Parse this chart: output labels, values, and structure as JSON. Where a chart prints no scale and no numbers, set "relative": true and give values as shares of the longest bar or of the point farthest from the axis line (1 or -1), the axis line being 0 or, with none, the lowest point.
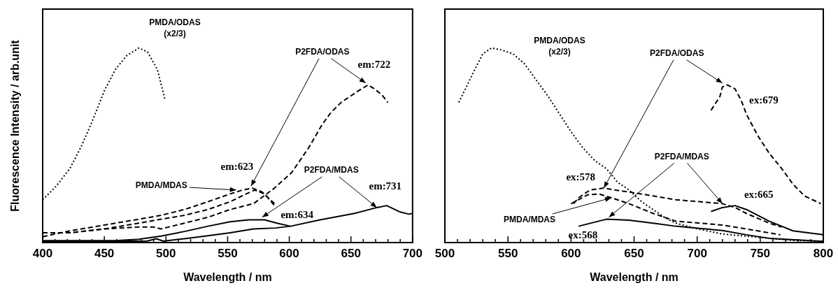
{
  "chart_data": [
    {
      "type": "line",
      "relative": true,
      "xlabel": "Wavelength / nm",
      "ylabel": "Fluorescence Intensity / arb.unit",
      "xlim": [
        400,
        700
      ],
      "xticks": [
        400,
        {
          "value": 410,
          "label": null
        },
        {
          "value": 420,
          "label": null
        },
        {
          "value": 430,
          "label": null
        },
        {
          "value": 440,
          "label": null
        },
        450,
        {
          "value": 460,
          "label": null
        },
        {
          "value": 470,
          "label": null
        },
        {
          "value": 480,
          "label": null
        },
        {
          "value": 490,
          "label": null
        },
        500,
        {
          "value": 510,
          "label": null
        },
        {
          "value": 520,
          "label": null
        },
        {
          "value": 530,
          "label": null
        },
        {
          "value": 540,
          "label": null
        },
        550,
        {
          "value": 560,
          "label": null
        },
        {
          "value": 570,
          "label": null
        },
        {
          "value": 580,
          "label": null
        },
        {
          "value": 590,
          "label": null
        },
        600,
        {
          "value": 610,
          "label": null
        },
        {
          "value": 620,
          "label": null
        },
        {
          "value": 630,
          "label": null
        },
        {
          "value": 640,
          "label": null
        },
        650,
        {
          "value": 660,
          "label": null
        },
        {
          "value": 670,
          "label": null
        },
        {
          "value": 680,
          "label": null
        },
        {
          "value": 690,
          "label": null
        },
        700
      ],
      "series": [
        {
          "color": "#000000",
          "line_style": "dotted",
          "x": [
            400,
            411,
            422,
            431,
            440,
            450,
            459,
            468,
            478,
            485,
            493,
            499
          ],
          "values": [
            0.22,
            0.29,
            0.38,
            0.49,
            0.62,
            0.78,
            0.89,
            0.96,
            1.0,
            0.98,
            0.89,
            0.74
          ]
        },
        {
          "color": "#000000",
          "line_style": "dashed",
          "x": [
            400,
            422,
            450,
            478,
            496,
            515,
            534,
            552,
            562,
            570,
            578,
            588
          ],
          "values": [
            0.03,
            0.06,
            0.09,
            0.12,
            0.14,
            0.17,
            0.21,
            0.25,
            0.27,
            0.28,
            0.26,
            0.2
          ]
        },
        {
          "color": "#000000",
          "line_style": "dashed",
          "x": [
            400,
            422,
            450,
            478,
            496,
            515,
            534,
            552,
            565,
            572,
            580,
            588
          ],
          "values": [
            0.05,
            0.05,
            0.07,
            0.1,
            0.12,
            0.14,
            0.17,
            0.21,
            0.25,
            0.27,
            0.25,
            0.19
          ]
        },
        {
          "color": "#000000",
          "line_style": "dashed",
          "x": [
            400,
            422,
            450,
            478,
            490,
            496,
            515,
            534,
            552,
            571,
            588,
            602,
            616,
            627,
            634,
            642,
            649,
            656,
            664,
            669,
            675,
            680
          ],
          "values": [
            0.05,
            0.05,
            0.07,
            0.08,
            0.08,
            0.07,
            0.1,
            0.13,
            0.17,
            0.2,
            0.28,
            0.36,
            0.49,
            0.61,
            0.67,
            0.72,
            0.75,
            0.78,
            0.81,
            0.79,
            0.76,
            0.72
          ]
        },
        {
          "color": "#000000",
          "line_style": "solid",
          "x": [
            400,
            459,
            478,
            496,
            515,
            534,
            552,
            567,
            580,
            590,
            601
          ],
          "values": [
            0.01,
            0.01,
            0.017,
            0.033,
            0.057,
            0.084,
            0.107,
            0.117,
            0.117,
            0.1,
            0.084
          ]
        },
        {
          "color": "#000000",
          "line_style": "solid",
          "x": [
            400,
            450,
            485,
            492,
            498,
            515,
            534,
            552,
            571,
            589,
            601,
            625,
            653,
            671,
            679,
            690,
            697,
            700
          ],
          "values": [
            0.005,
            0.005,
            0.008,
            0.02,
            0.007,
            0.02,
            0.035,
            0.05,
            0.07,
            0.075,
            0.084,
            0.117,
            0.15,
            0.18,
            0.19,
            0.157,
            0.146,
            0.15
          ]
        }
      ],
      "annotations": [
        "PMDA/ODAS (x2/3)",
        {
          "text": "PMDA/MDAS",
          "x": 557,
          "y": 0.27
        },
        {
          "text": "em:623",
          "x": 569,
          "y": 0.29
        },
        {
          "text": "P2FDA/ODAS",
          "x": 662,
          "y": 0.82
        },
        {
          "text": "em:722",
          "x": 666,
          "y": 0.82
        },
        {
          "text": "P2FDA/MDAS",
          "x": 671,
          "y": 0.18
        },
        {
          "text": "em:731",
          "x": 679,
          "y": 0.19
        },
        {
          "text": "em:634",
          "x": 578,
          "y": 0.13
        }
      ]
    },
    {
      "type": "line",
      "relative": true,
      "xlabel": "Wavelength / nm",
      "xlim": [
        500,
        800
      ],
      "xticks": [
        500,
        {
          "value": 510,
          "label": null
        },
        {
          "value": 520,
          "label": null
        },
        {
          "value": 530,
          "label": null
        },
        {
          "value": 540,
          "label": null
        },
        550,
        {
          "value": 560,
          "label": null
        },
        {
          "value": 570,
          "label": null
        },
        {
          "value": 580,
          "label": null
        },
        {
          "value": 590,
          "label": null
        },
        600,
        {
          "value": 610,
          "label": null
        },
        {
          "value": 620,
          "label": null
        },
        {
          "value": 630,
          "label": null
        },
        {
          "value": 640,
          "label": null
        },
        650,
        {
          "value": 660,
          "label": null
        },
        {
          "value": 670,
          "label": null
        },
        {
          "value": 680,
          "label": null
        },
        {
          "value": 690,
          "label": null
        },
        700,
        {
          "value": 710,
          "label": null
        },
        {
          "value": 720,
          "label": null
        },
        {
          "value": 730,
          "label": null
        },
        {
          "value": 740,
          "label": null
        },
        750,
        {
          "value": 760,
          "label": null
        },
        {
          "value": 770,
          "label": null
        },
        {
          "value": 780,
          "label": null
        },
        {
          "value": 790,
          "label": null
        },
        800
      ],
      "series": [
        {
          "color": "#000000",
          "line_style": "dotted",
          "x": [
            511,
            517,
            523,
            530,
            537,
            545,
            554,
            563,
            573,
            582,
            591,
            600,
            609,
            619,
            628,
            637,
            646,
            656,
            665,
            674,
            683,
            702,
            720,
            739,
            757,
            776,
            800
          ],
          "values": [
            0.72,
            0.8,
            0.88,
            0.97,
            1.0,
            0.99,
            0.97,
            0.92,
            0.83,
            0.75,
            0.66,
            0.57,
            0.49,
            0.42,
            0.38,
            0.31,
            0.27,
            0.21,
            0.17,
            0.13,
            0.1,
            0.068,
            0.044,
            0.033,
            0.022,
            0.011,
            0.006
          ]
        },
        {
          "color": "#000000",
          "line_style": "dashed",
          "x": [
            600,
            613,
            622,
            632,
            646,
            665,
            683,
            702,
            720,
            739,
            757,
            766
          ],
          "values": [
            0.2,
            0.245,
            0.25,
            0.23,
            0.2,
            0.15,
            0.11,
            0.1,
            0.09,
            0.07,
            0.05,
            0.04
          ]
        },
        {
          "color": "#000000",
          "line_style": "dashed",
          "x": [
            602,
            606,
            615,
            626,
            635,
            646,
            665,
            683,
            702,
            720,
            730,
            739,
            757,
            767
          ],
          "values": [
            0.2,
            0.23,
            0.27,
            0.28,
            0.27,
            0.26,
            0.24,
            0.22,
            0.21,
            0.2,
            0.18,
            0.15,
            0.1,
            0.08
          ]
        },
        {
          "color": "#000000",
          "line_style": "dashed",
          "x": [
            711,
            718,
            720,
            724,
            730,
            735,
            739,
            748,
            757,
            767,
            776,
            785,
            798
          ],
          "values": [
            0.68,
            0.75,
            0.8,
            0.81,
            0.79,
            0.73,
            0.66,
            0.55,
            0.46,
            0.38,
            0.3,
            0.24,
            0.2
          ]
        },
        {
          "color": "#000000",
          "line_style": "solid",
          "x": [
            711,
            720,
            730,
            739,
            757,
            776,
            800
          ],
          "values": [
            0.16,
            0.18,
            0.19,
            0.17,
            0.11,
            0.06,
            0.04
          ]
        },
        {
          "color": "#000000",
          "line_style": "solid",
          "x": [
            606,
            628,
            646,
            665,
            683,
            702,
            720,
            739,
            757,
            800
          ],
          "values": [
            0.084,
            0.12,
            0.115,
            0.1,
            0.084,
            0.073,
            0.062,
            0.04,
            0.022,
            0.006
          ]
        }
      ],
      "annotations": [
        "PMDA/ODAS (x2/3)",
        {
          "text": "P2FDA/ODAS",
          "x": 720,
          "y": 0.82
        },
        {
          "text": "ex:679",
          "x": 724,
          "y": 0.81
        },
        {
          "text": "ex:578",
          "x": 626,
          "y": 0.28
        },
        {
          "text": "P2FDA/MDAS",
          "x": 720,
          "y": 0.2
        },
        {
          "text": "ex:665",
          "x": 730,
          "y": 0.19
        },
        {
          "text": "PMDA/MDAS",
          "x": 632,
          "y": 0.23
        },
        {
          "text": "ex:568",
          "x": 630,
          "y": 0.13
        }
      ]
    }
  ]
}
